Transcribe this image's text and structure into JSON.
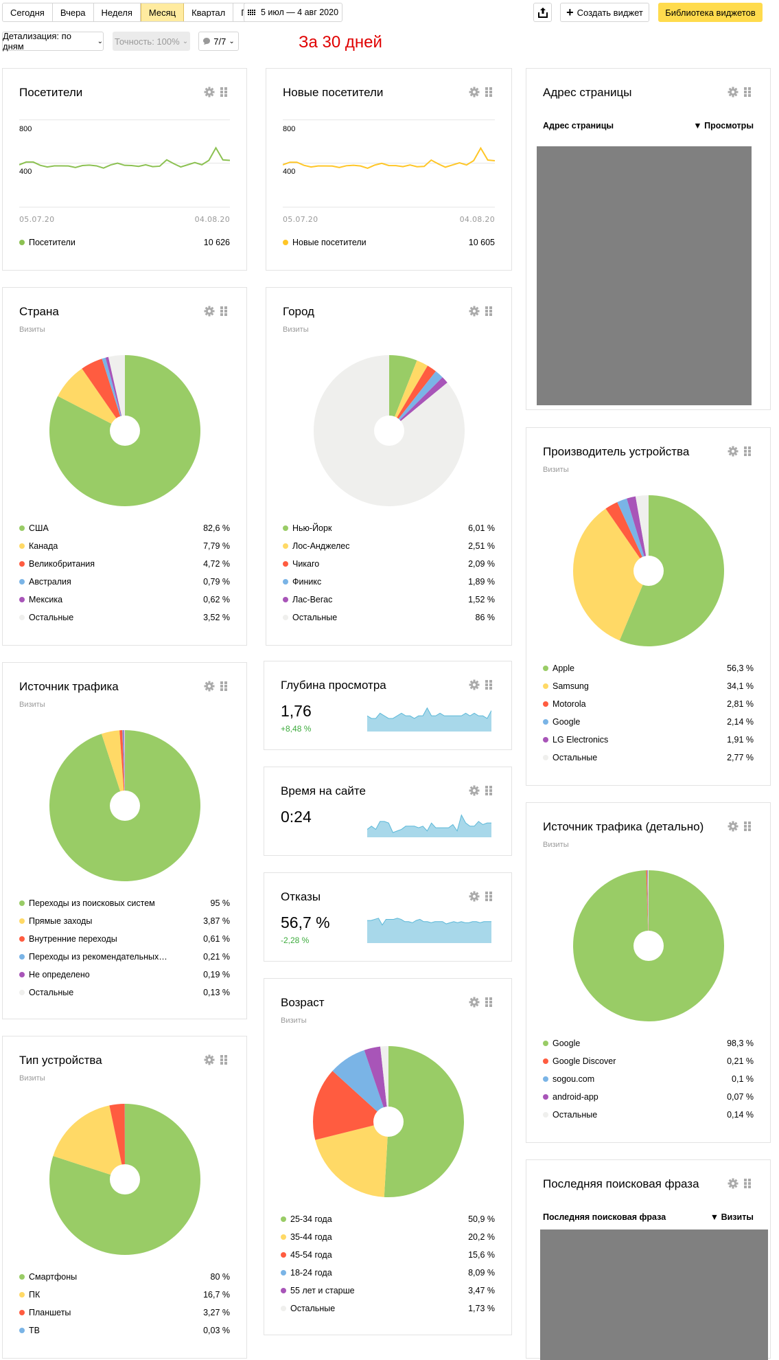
{
  "toolbar": {
    "periods": [
      "Сегодня",
      "Вчера",
      "Неделя",
      "Месяц",
      "Квартал",
      "Год"
    ],
    "active_period": "Месяц",
    "date_range": "5 июл — 4 авг 2020",
    "share_icon": "share-icon",
    "create_widget": "Создать виджет",
    "widget_library": "Библиотека виджетов",
    "detail": "Детализация: по дням",
    "accuracy": "Точность: 100%",
    "segments": "7/7",
    "annotation": "За 30 дней"
  },
  "colors": {
    "green": "#99cc66",
    "yellow": "#ffd966",
    "red": "#ff5c40",
    "blue": "#7ab4e6",
    "purple": "#a855b8",
    "other": "#efefed",
    "spark": "#a8d8ea",
    "accent": "#ffdb4d"
  },
  "widgets": {
    "visitors": {
      "title": "Посетители",
      "y_ticks": [
        "800",
        "400"
      ],
      "x_start": "05.07.20",
      "x_end": "04.08.20",
      "legend_label": "Посетители",
      "total": "10 626"
    },
    "new_visitors": {
      "title": "Новые посетители",
      "y_ticks": [
        "800",
        "400"
      ],
      "x_start": "05.07.20",
      "x_end": "04.08.20",
      "legend_label": "Новые посетители",
      "total": "10 605"
    },
    "page_address": {
      "title": "Адрес страницы",
      "col1": "Адрес страницы",
      "col2": "▼ Просмотры"
    },
    "country": {
      "title": "Страна",
      "subtitle": "Визиты",
      "items": [
        {
          "label": "США",
          "value": "82,6 %"
        },
        {
          "label": "Канада",
          "value": "7,79 %"
        },
        {
          "label": "Великобритания",
          "value": "4,72 %"
        },
        {
          "label": "Австралия",
          "value": "0,79 %"
        },
        {
          "label": "Мексика",
          "value": "0,62 %"
        },
        {
          "label": "Остальные",
          "value": "3,52 %"
        }
      ]
    },
    "city": {
      "title": "Город",
      "subtitle": "Визиты",
      "items": [
        {
          "label": "Нью-Йорк",
          "value": "6,01 %"
        },
        {
          "label": "Лос-Анджелес",
          "value": "2,51 %"
        },
        {
          "label": "Чикаго",
          "value": "2,09 %"
        },
        {
          "label": "Финикс",
          "value": "1,89 %"
        },
        {
          "label": "Лас-Вегас",
          "value": "1,52 %"
        },
        {
          "label": "Остальные",
          "value": "86 %"
        }
      ]
    },
    "manufacturer": {
      "title": "Производитель устройства",
      "subtitle": "Визиты",
      "items": [
        {
          "label": "Apple",
          "value": "56,3 %"
        },
        {
          "label": "Samsung",
          "value": "34,1 %"
        },
        {
          "label": "Motorola",
          "value": "2,81 %"
        },
        {
          "label": "Google",
          "value": "2,14 %"
        },
        {
          "label": "LG Electronics",
          "value": "1,91 %"
        },
        {
          "label": "Остальные",
          "value": "2,77 %"
        }
      ]
    },
    "traffic": {
      "title": "Источник трафика",
      "subtitle": "Визиты",
      "items": [
        {
          "label": "Переходы из поисковых систем",
          "value": "95 %"
        },
        {
          "label": "Прямые заходы",
          "value": "3,87 %"
        },
        {
          "label": "Внутренние переходы",
          "value": "0,61 %"
        },
        {
          "label": "Переходы из рекомендательных…",
          "value": "0,21 %"
        },
        {
          "label": "Не определено",
          "value": "0,19 %"
        },
        {
          "label": "Остальные",
          "value": "0,13 %"
        }
      ]
    },
    "depth": {
      "title": "Глубина просмотра",
      "value": "1,76",
      "delta": "+8,48 %"
    },
    "time": {
      "title": "Время на сайте",
      "value": "0:24"
    },
    "bounce": {
      "title": "Отказы",
      "value": "56,7 %",
      "delta": "-2,28 %"
    },
    "traffic_detail": {
      "title": "Источник трафика (детально)",
      "subtitle": "Визиты",
      "items": [
        {
          "label": "Google",
          "value": "98,3 %"
        },
        {
          "label": "Google Discover",
          "value": "0,21 %"
        },
        {
          "label": "sogou.com",
          "value": "0,1 %"
        },
        {
          "label": "android-app",
          "value": "0,07 %"
        },
        {
          "label": "Остальные",
          "value": "0,14 %"
        }
      ]
    },
    "age": {
      "title": "Возраст",
      "subtitle": "Визиты",
      "items": [
        {
          "label": "25-34 года",
          "value": "50,9 %"
        },
        {
          "label": "35-44 года",
          "value": "20,2 %"
        },
        {
          "label": "45-54 года",
          "value": "15,6 %"
        },
        {
          "label": "18-24 года",
          "value": "8,09 %"
        },
        {
          "label": "55 лет и старше",
          "value": "3,47 %"
        },
        {
          "label": "Остальные",
          "value": "1,73 %"
        }
      ]
    },
    "device_type": {
      "title": "Тип устройства",
      "subtitle": "Визиты",
      "items": [
        {
          "label": "Смартфоны",
          "value": "80 %"
        },
        {
          "label": "ПК",
          "value": "16,7 %"
        },
        {
          "label": "Планшеты",
          "value": "3,27 %"
        },
        {
          "label": "ТВ",
          "value": "0,03 %"
        }
      ]
    },
    "search_phrase": {
      "title": "Последняя поисковая фраза",
      "col1": "Последняя поисковая фраза",
      "col2": "▼ Визиты"
    }
  },
  "chart_data": [
    {
      "type": "line",
      "title": "Посетители",
      "series": [
        {
          "name": "Посетители",
          "color": "#8cc152",
          "values": [
            385,
            410,
            410,
            380,
            365,
            375,
            375,
            374,
            360,
            378,
            382,
            375,
            355,
            383,
            400,
            380,
            378,
            370,
            385,
            368,
            372,
            430,
            395,
            365,
            385,
            405,
            385,
            425,
            540,
            430,
            425
          ]
        }
      ],
      "x_start": "05.07.20",
      "x_end": "04.08.20",
      "ylim": [
        0,
        1000
      ],
      "yticks": [
        400,
        800
      ]
    },
    {
      "type": "line",
      "title": "Новые посетители",
      "series": [
        {
          "name": "Новые посетители",
          "color": "#ffc627",
          "values": [
            385,
            408,
            408,
            380,
            365,
            374,
            374,
            373,
            360,
            376,
            380,
            374,
            353,
            382,
            398,
            378,
            377,
            368,
            383,
            367,
            370,
            428,
            393,
            363,
            383,
            403,
            383,
            423,
            538,
            428,
            422
          ]
        }
      ],
      "x_start": "05.07.20",
      "x_end": "04.08.20",
      "ylim": [
        0,
        1000
      ],
      "yticks": [
        400,
        800
      ]
    },
    {
      "type": "pie",
      "title": "Страна",
      "labels": [
        "США",
        "Канада",
        "Великобритания",
        "Австралия",
        "Мексика",
        "Остальные"
      ],
      "values": [
        82.6,
        7.79,
        4.72,
        0.79,
        0.62,
        3.52
      ]
    },
    {
      "type": "pie",
      "title": "Город",
      "labels": [
        "Нью-Йорк",
        "Лос-Анджелес",
        "Чикаго",
        "Финикс",
        "Лас-Вегас",
        "Остальные"
      ],
      "values": [
        6.01,
        2.51,
        2.09,
        1.89,
        1.52,
        86
      ]
    },
    {
      "type": "pie",
      "title": "Производитель устройства",
      "labels": [
        "Apple",
        "Samsung",
        "Motorola",
        "Google",
        "LG Electronics",
        "Остальные"
      ],
      "values": [
        56.3,
        34.1,
        2.81,
        2.14,
        1.91,
        2.77
      ]
    },
    {
      "type": "pie",
      "title": "Источник трафика",
      "labels": [
        "Переходы из поисковых систем",
        "Прямые заходы",
        "Внутренние переходы",
        "Переходы из рекомендательных…",
        "Не определено",
        "Остальные"
      ],
      "values": [
        95,
        3.87,
        0.61,
        0.21,
        0.19,
        0.13
      ]
    },
    {
      "type": "pie",
      "title": "Источник трафика (детально)",
      "labels": [
        "Google",
        "Google Discover",
        "sogou.com",
        "android-app",
        "Остальные"
      ],
      "values": [
        98.3,
        0.21,
        0.1,
        0.07,
        0.14
      ]
    },
    {
      "type": "pie",
      "title": "Возраст",
      "labels": [
        "25-34 года",
        "35-44 года",
        "45-54 года",
        "18-24 года",
        "55 лет и старше",
        "Остальные"
      ],
      "values": [
        50.9,
        20.2,
        15.6,
        8.09,
        3.47,
        1.73
      ]
    },
    {
      "type": "pie",
      "title": "Тип устройства",
      "labels": [
        "Смартфоны",
        "ПК",
        "Планшеты",
        "ТВ"
      ],
      "values": [
        80,
        16.7,
        3.27,
        0.03
      ]
    },
    {
      "type": "area",
      "title": "Глубина просмотра",
      "values": [
        6,
        5,
        5,
        7,
        6,
        5,
        5,
        6,
        7,
        6,
        6,
        5,
        6,
        6,
        9,
        6,
        6,
        7,
        6,
        6,
        6,
        6,
        6,
        7,
        6,
        7,
        6,
        6,
        5,
        8
      ]
    },
    {
      "type": "area",
      "title": "Время на сайте",
      "values": [
        5,
        7,
        5,
        10,
        10,
        9,
        3,
        4,
        5,
        7,
        7,
        7,
        6,
        7,
        4,
        9,
        6,
        6,
        6,
        6,
        8,
        4,
        14,
        9,
        7,
        7,
        10,
        8,
        9,
        9
      ]
    },
    {
      "type": "area",
      "title": "Отказы",
      "values": [
        20,
        20,
        21,
        22,
        16,
        21,
        21,
        21,
        22,
        21,
        19,
        19,
        18,
        20,
        21,
        19,
        19,
        18,
        19,
        19,
        19,
        17,
        18,
        19,
        18,
        19,
        18,
        18,
        19,
        19,
        18,
        19,
        19,
        19
      ]
    }
  ]
}
